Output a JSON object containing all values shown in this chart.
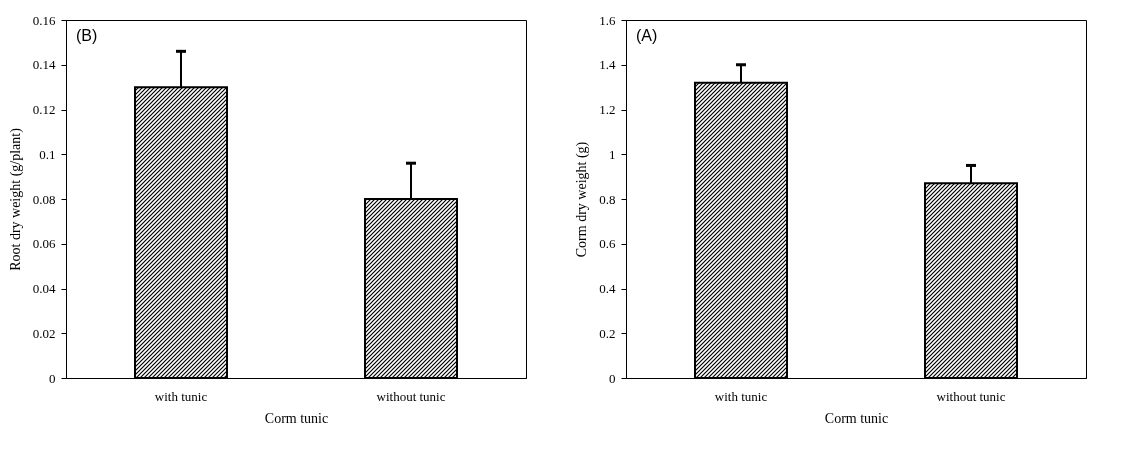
{
  "chart_data": [
    {
      "type": "bar",
      "categories": [
        "with tunic",
        "without tunic"
      ],
      "values": [
        0.13,
        0.08
      ],
      "errors": [
        [
          0.13,
          0.146
        ],
        [
          0.08,
          0.096
        ]
      ],
      "color": "#000000",
      "xlabel": "Corm tunic",
      "ylabel": "Root dry weight (g/plant)",
      "ylim": [
        0,
        0.16
      ],
      "yticks": [
        0,
        0.02,
        0.04,
        0.06,
        0.08,
        0.1,
        0.12,
        0.14,
        0.16
      ],
      "annotations": [
        "(B)"
      ],
      "grid": false
    },
    {
      "type": "bar",
      "categories": [
        "with tunic",
        "without tunic"
      ],
      "values": [
        1.32,
        0.87
      ],
      "errors": [
        [
          1.32,
          1.4
        ],
        [
          0.87,
          0.95
        ]
      ],
      "color": "#000000",
      "xlabel": "Corm tunic",
      "ylabel": "Corm dry weight (g)",
      "ylim": [
        0,
        1.6
      ],
      "yticks": [
        0,
        0.2,
        0.4,
        0.6,
        0.8,
        1,
        1.2,
        1.4,
        1.6
      ],
      "annotations": [
        "(A)"
      ],
      "grid": false
    }
  ]
}
